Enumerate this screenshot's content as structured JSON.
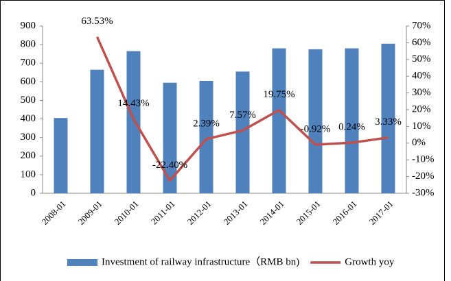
{
  "chart_data": {
    "type": "bar_line",
    "categories": [
      "2008-01",
      "2009-01",
      "2010-01",
      "2011-01",
      "2012-01",
      "2013-01",
      "2014-01",
      "2015-01",
      "2016-01",
      "2017-01"
    ],
    "series": [
      {
        "name": "Investment of railway infrastructure（RMB bn)",
        "color": "#4f81bd",
        "type": "bar",
        "values": [
          405,
          665,
          765,
          595,
          605,
          655,
          780,
          775,
          780,
          805
        ]
      },
      {
        "name": "Growth yoy",
        "color": "#c0504d",
        "type": "line",
        "axis": "y2",
        "values": [
          null,
          63.53,
          14.43,
          -22.4,
          2.39,
          7.57,
          19.75,
          -0.92,
          0.24,
          3.33
        ],
        "value_labels": [
          null,
          "63.53%",
          "14.43%",
          "-22.40%",
          "2.39%",
          "7.57%",
          "19.75%",
          "-0.92%",
          "0.24%",
          "3.33%"
        ]
      }
    ],
    "ylim": [
      0,
      900
    ],
    "yticks": [
      0,
      100,
      200,
      300,
      400,
      500,
      600,
      700,
      800,
      900
    ],
    "y2lim": [
      -30,
      70
    ],
    "y2ticks": [
      {
        "value": -30,
        "label": "-30%"
      },
      {
        "value": -20,
        "label": "-20%"
      },
      {
        "value": -10,
        "label": "-10%"
      },
      {
        "value": 0,
        "label": "0%"
      },
      {
        "value": 10,
        "label": "10%"
      },
      {
        "value": 20,
        "label": "20%"
      },
      {
        "value": 30,
        "label": "30%"
      },
      {
        "value": 40,
        "label": "40%"
      },
      {
        "value": 50,
        "label": "50%"
      },
      {
        "value": 60,
        "label": "60%"
      },
      {
        "value": 70,
        "label": "70%"
      }
    ],
    "legend": "bottom"
  }
}
